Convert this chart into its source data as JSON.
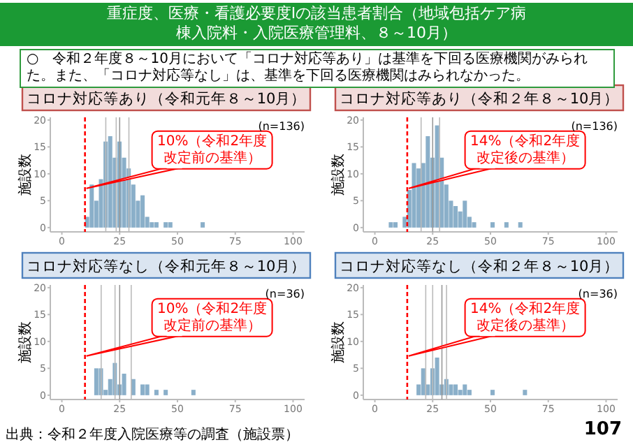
{
  "chart_data": [
    {
      "type": "histogram",
      "title": "コロナ対応等あり（令和元年８～10月）",
      "ylabel": "施設数",
      "color": "#8aafc9",
      "bins": [
        10,
        12,
        14,
        16,
        18,
        20,
        22,
        24,
        26,
        28,
        30,
        32,
        34,
        36,
        38,
        40,
        42,
        44,
        46,
        48,
        50,
        52,
        54,
        56,
        58,
        60,
        62
      ],
      "values": [
        2,
        8,
        5,
        9,
        16,
        17,
        13,
        16,
        13,
        11,
        8,
        5,
        6,
        2,
        1,
        1,
        0,
        1,
        1,
        0,
        0,
        0,
        0,
        0,
        0,
        1
      ],
      "xlim": [
        -5,
        105
      ],
      "ylim": [
        -0.8,
        20.5
      ],
      "xticks": [
        0,
        25,
        50,
        75,
        100
      ],
      "yticks": [
        0,
        5,
        10,
        15,
        20
      ],
      "ref_lines": [
        {
          "axis": "x",
          "value": 19,
          "color": "#bbbbbb"
        },
        {
          "axis": "x",
          "value": 23.5,
          "color": "#bbbbbb"
        },
        {
          "axis": "x",
          "value": 25,
          "color": "#999999"
        },
        {
          "axis": "x",
          "value": 29,
          "color": "#bbbbbb"
        },
        {
          "axis": "x",
          "value": 10,
          "color": "#ff0000",
          "line_style": "dashed",
          "label": "10%（令和2年度改定前の基準）"
        }
      ],
      "annotations": [
        "(n=136)",
        "重症度、医療・看護必要度Ⅰの該当患者割合（地域包括ケア病棟入院料・入院医療管理料、８～10月）",
        "○　令和２年度８～10月において「コロナ対応等あり」は基準を下回る医療機関がみられた。また、「コロナ対応等なし」は、基準を下回る医療機関はみられなかった。"
      ]
    },
    {
      "type": "histogram",
      "title": "コロナ対応等あり（令和２年８～10月）",
      "ylabel": "施設数",
      "color": "#8aafc9",
      "bins": [
        6,
        8,
        10,
        12,
        14,
        16,
        18,
        20,
        22,
        24,
        26,
        28,
        30,
        32,
        34,
        36,
        38,
        40,
        42,
        44,
        46,
        48,
        50,
        52,
        54,
        56,
        58,
        60,
        62,
        64
      ],
      "values": [
        1,
        1,
        0,
        2,
        7,
        12,
        11,
        12,
        17,
        13,
        19,
        13,
        8,
        5,
        4,
        3,
        5,
        2,
        1,
        0,
        0,
        0,
        1,
        0,
        0,
        1,
        0,
        0,
        1
      ],
      "xlim": [
        -5,
        105
      ],
      "ylim": [
        -0.8,
        20.5
      ],
      "xticks": [
        0,
        25,
        50,
        75,
        100
      ],
      "yticks": [
        0,
        5,
        10,
        15,
        20
      ],
      "ref_lines": [
        {
          "axis": "x",
          "value": 20,
          "color": "#bbbbbb"
        },
        {
          "axis": "x",
          "value": 25,
          "color": "#999999"
        },
        {
          "axis": "x",
          "value": 28,
          "color": "#bbbbbb"
        },
        {
          "axis": "x",
          "value": 14,
          "color": "#ff0000",
          "line_style": "dashed",
          "label": "14%（令和2年度改定後の基準）"
        }
      ],
      "annotations": [
        "(n=136)"
      ]
    },
    {
      "type": "histogram",
      "title": "コロナ対応等なし（令和元年８～10月）",
      "ylabel": "施設数",
      "color": "#8aafc9",
      "bins": [
        14,
        16,
        18,
        20,
        22,
        24,
        26,
        28,
        30,
        32,
        34,
        36,
        38,
        40,
        42,
        44,
        46,
        48,
        50,
        52,
        54,
        56,
        58
      ],
      "values": [
        5,
        5,
        1,
        3,
        6,
        2,
        4,
        0,
        3,
        0,
        2,
        2,
        0,
        1,
        0,
        1,
        0,
        0,
        0,
        0,
        0,
        1
      ],
      "xlim": [
        -5,
        105
      ],
      "ylim": [
        -0.8,
        20.5
      ],
      "xticks": [
        0,
        25,
        50,
        75,
        100
      ],
      "yticks": [
        0,
        5,
        10,
        15,
        20
      ],
      "ref_lines": [
        {
          "axis": "x",
          "value": 17,
          "color": "#bbbbbb"
        },
        {
          "axis": "x",
          "value": 23,
          "color": "#bbbbbb"
        },
        {
          "axis": "x",
          "value": 25,
          "color": "#999999"
        },
        {
          "axis": "x",
          "value": 30,
          "color": "#bbbbbb"
        },
        {
          "axis": "x",
          "value": 10,
          "color": "#ff0000",
          "line_style": "dashed",
          "label": "10%（令和2年度改定前の基準）"
        }
      ],
      "annotations": [
        "(n=36)"
      ]
    },
    {
      "type": "histogram",
      "title": "コロナ対応等なし（令和２年８～10月）",
      "ylabel": "施設数",
      "color": "#8aafc9",
      "bins": [
        18,
        20,
        22,
        24,
        26,
        28,
        30,
        32,
        34,
        36,
        38,
        40,
        42,
        44,
        46,
        48,
        50,
        52,
        54,
        56,
        58,
        60,
        62,
        64,
        66
      ],
      "values": [
        2,
        5,
        2,
        5,
        7,
        2,
        3,
        2,
        2,
        1,
        2,
        1,
        0,
        0,
        0,
        0,
        1,
        0,
        0,
        0,
        0,
        0,
        0,
        1
      ],
      "xlim": [
        -5,
        105
      ],
      "ylim": [
        -0.8,
        20.5
      ],
      "xticks": [
        0,
        25,
        50,
        75,
        100
      ],
      "yticks": [
        0,
        5,
        10,
        15,
        20
      ],
      "ref_lines": [
        {
          "axis": "x",
          "value": 22,
          "color": "#bbbbbb"
        },
        {
          "axis": "x",
          "value": 25,
          "color": "#bbbbbb"
        },
        {
          "axis": "x",
          "value": 29,
          "color": "#999999"
        },
        {
          "axis": "x",
          "value": 31,
          "color": "#bbbbbb"
        },
        {
          "axis": "x",
          "value": 14,
          "color": "#ff0000",
          "line_style": "dashed",
          "label": "14%（令和2年度改定後の基準）"
        }
      ],
      "annotations": [
        "(n=36)",
        "出典：令和２年度入院医療等の調査（施設票）",
        "107"
      ]
    }
  ]
}
